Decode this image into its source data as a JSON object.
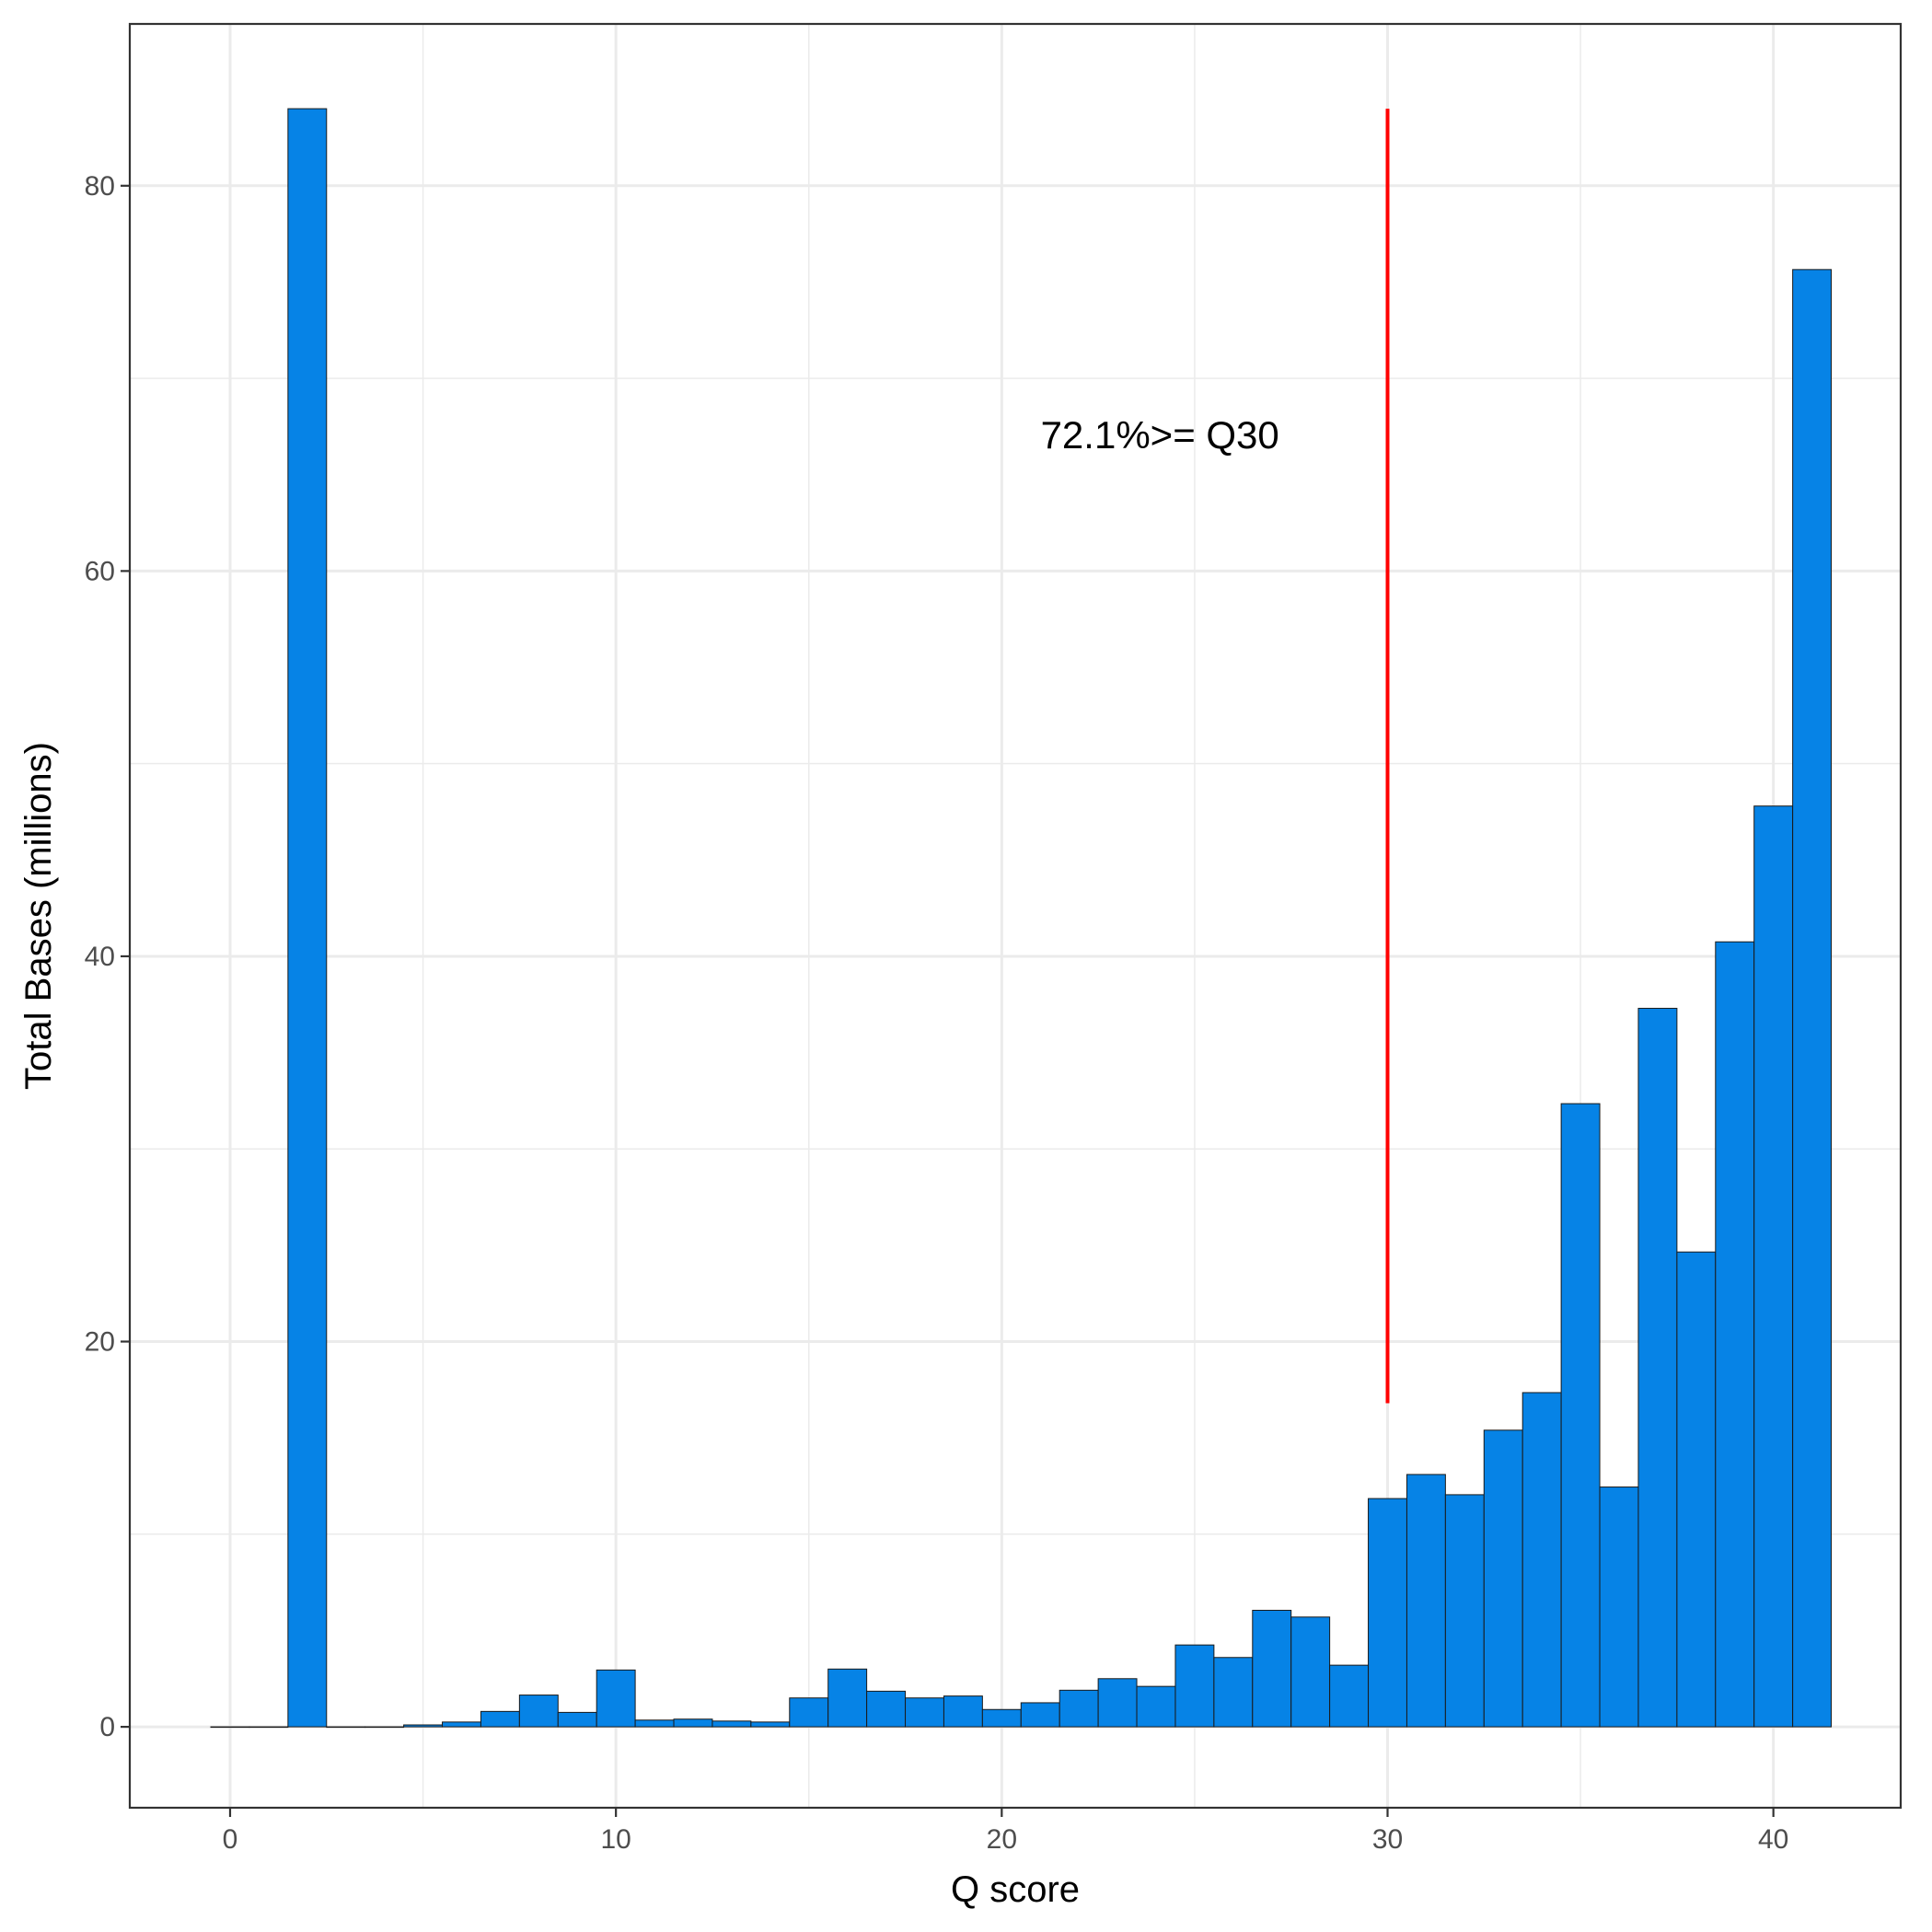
{
  "chart_data": {
    "type": "bar",
    "title": "",
    "xlabel": "Q score",
    "ylabel": "Total Bases (millions)",
    "xlim": [
      -2.6,
      43.3
    ],
    "ylim": [
      -4.2,
      88.4
    ],
    "x_ticks": [
      0,
      10,
      20,
      30,
      40
    ],
    "y_ticks": [
      0,
      20,
      40,
      60,
      80
    ],
    "grid": true,
    "bar_color": "#0683E6",
    "bin_width": 1,
    "x": [
      0,
      1,
      2,
      3,
      4,
      5,
      6,
      7,
      8,
      9,
      10,
      11,
      12,
      13,
      14,
      15,
      16,
      17,
      18,
      19,
      20,
      21,
      22,
      23,
      24,
      25,
      26,
      27,
      28,
      29,
      30,
      31,
      32,
      33,
      34,
      35,
      36,
      37,
      38,
      39,
      40,
      41
    ],
    "values": [
      0,
      0,
      84,
      0,
      0,
      0.1,
      0.25,
      0.8,
      1.65,
      0.75,
      2.95,
      0.35,
      0.4,
      0.3,
      0.25,
      1.5,
      3.0,
      1.85,
      1.5,
      1.6,
      0.9,
      1.25,
      1.9,
      2.5,
      2.1,
      4.25,
      3.6,
      6.05,
      5.7,
      3.2,
      11.85,
      13.1,
      12.05,
      15.4,
      17.35,
      32.35,
      12.45,
      37.3,
      24.65,
      40.75,
      47.8,
      75.65
    ],
    "reference_line": {
      "x": 30,
      "y_start": 16.8,
      "y_end": 84,
      "color": "#ff0000"
    },
    "annotation": {
      "text": "72.1%>= Q30",
      "x": 24.1,
      "y": 67.1
    }
  }
}
